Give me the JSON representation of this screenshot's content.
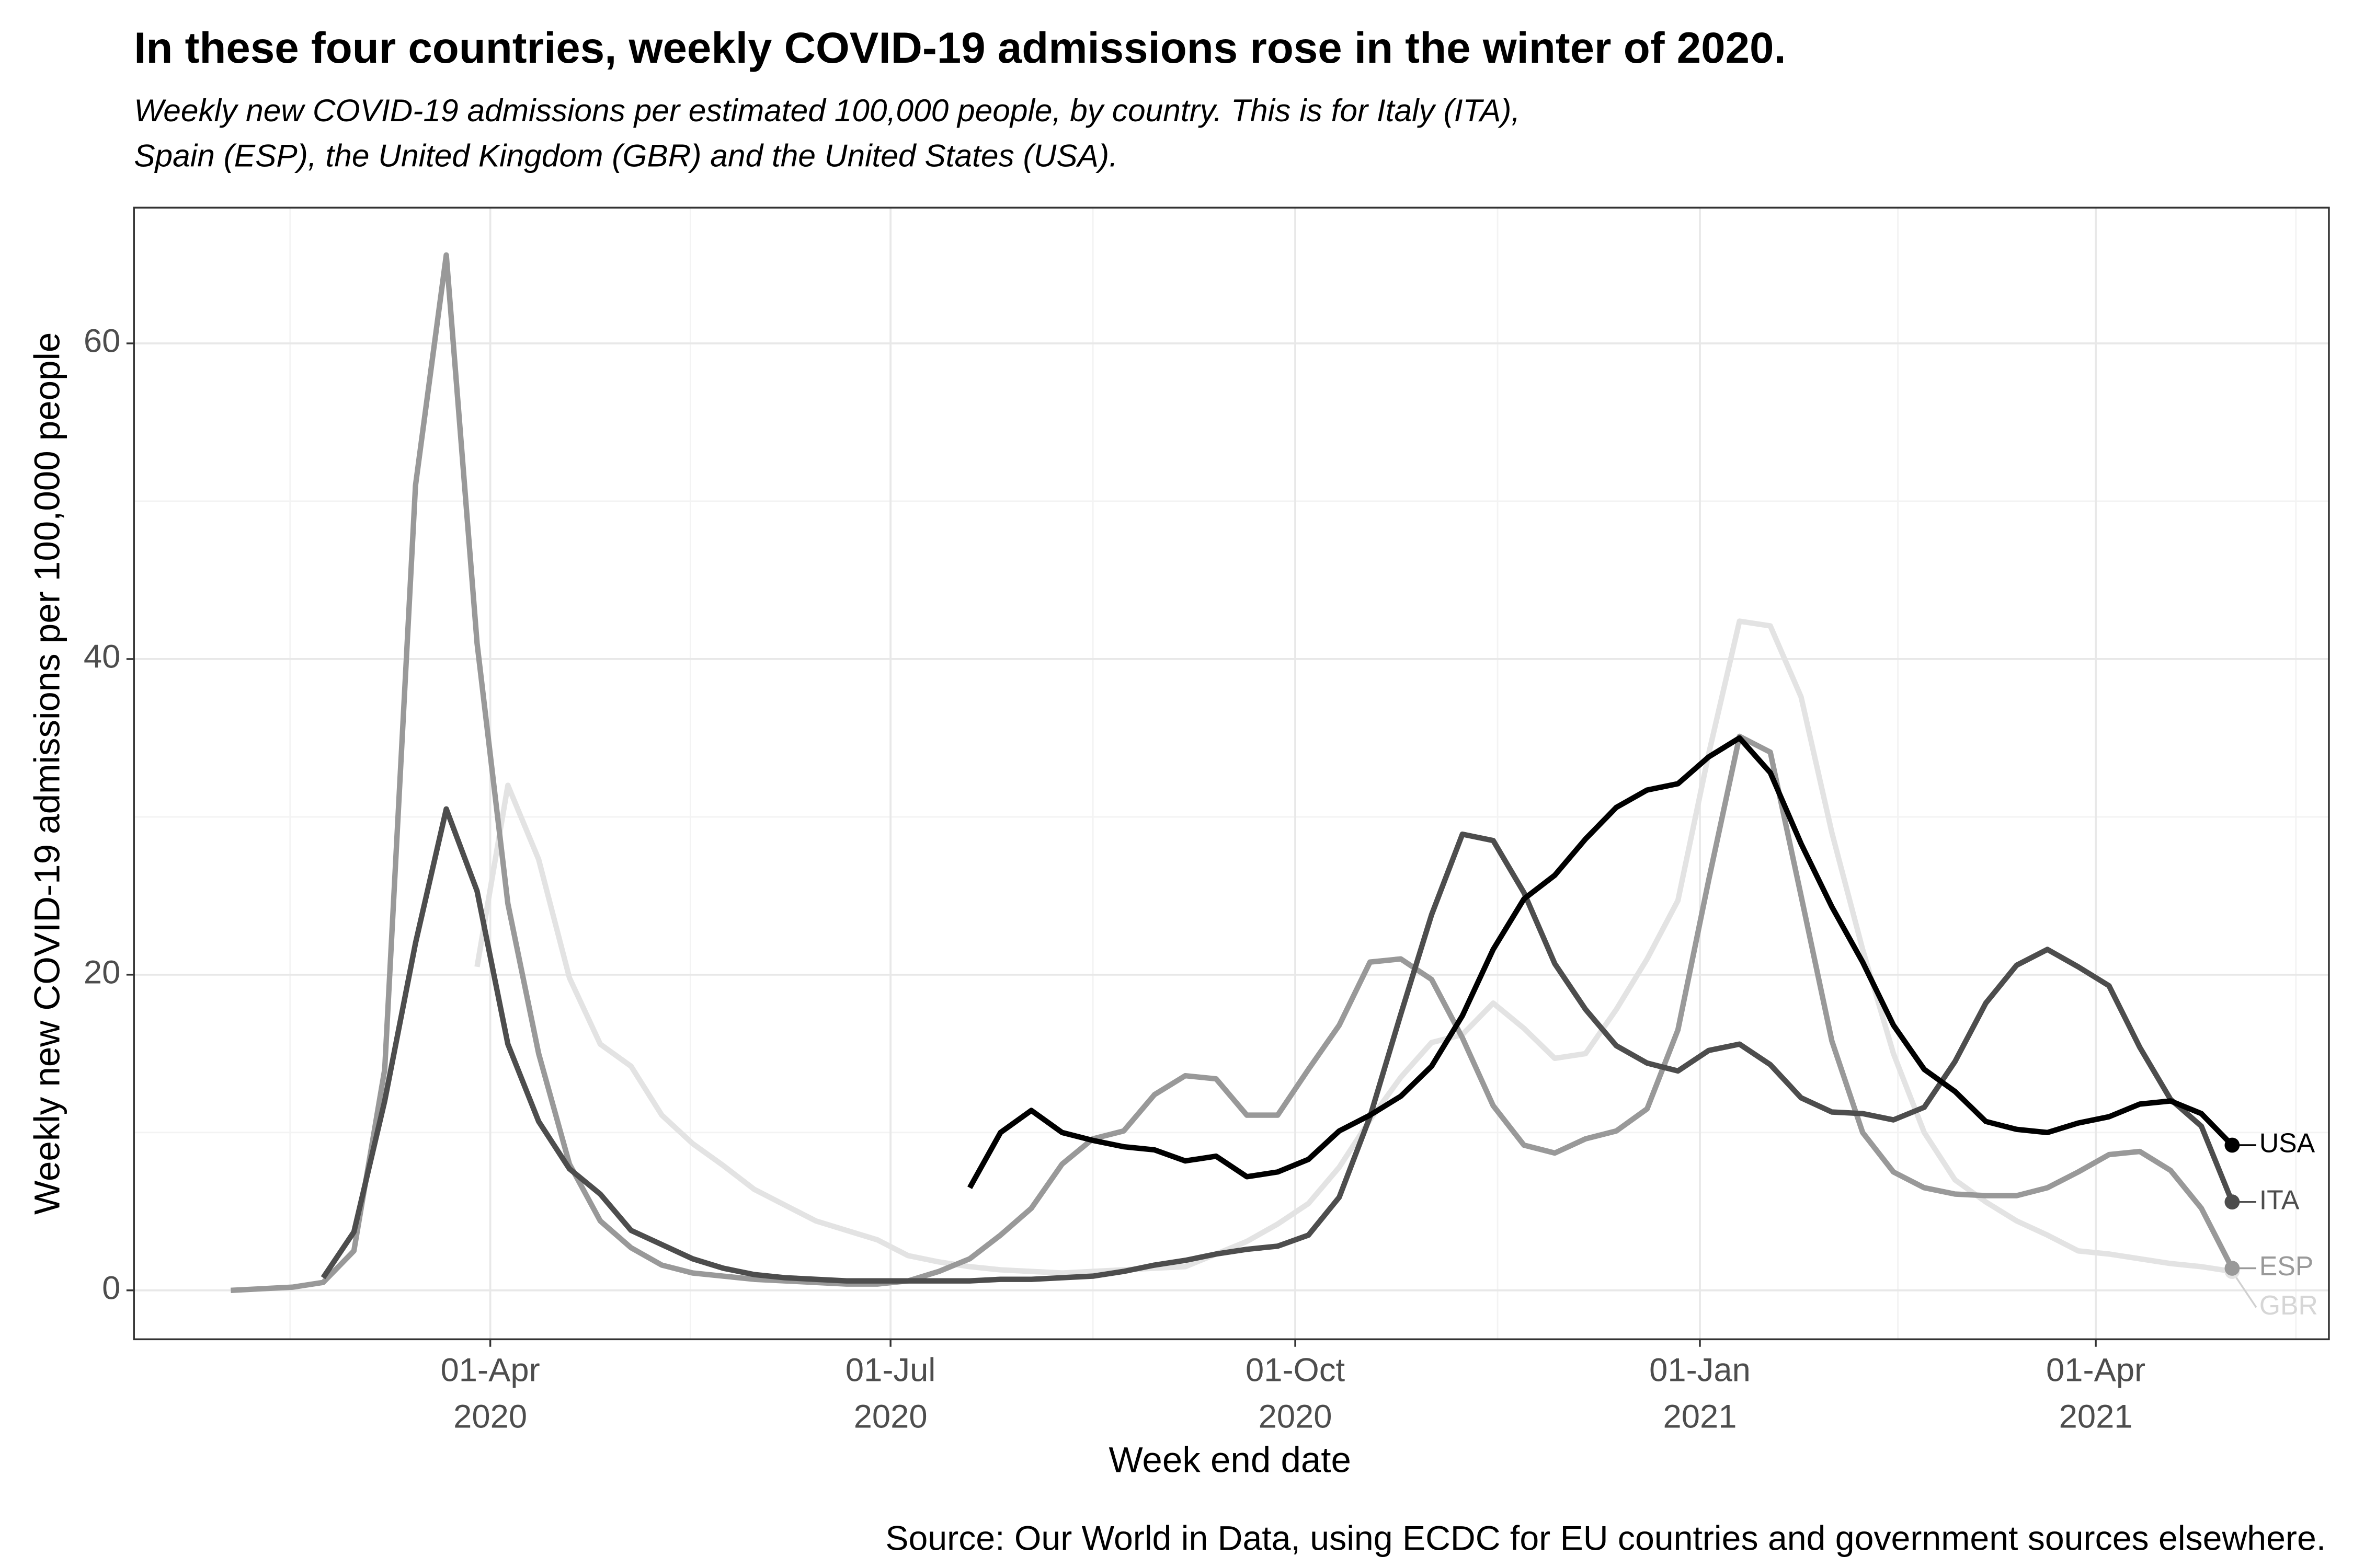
{
  "chart_data": {
    "type": "line",
    "title": "In these four countries, weekly COVID-19 admissions rose in the winter of 2020.",
    "subtitle": [
      "Weekly new COVID-19 admissions per estimated 100,000 people, by country. This is for Italy (ITA),",
      "Spain (ESP), the United Kingdom (GBR) and the United States (USA)."
    ],
    "xlabel": "Week end date",
    "ylabel": "Weekly new COVID-19 admissions per 100,000 people",
    "caption": "Source: Our World in Data, using ECDC for EU countries and government sources elsewhere.",
    "x": [
      "2020-02-02",
      "2020-02-09",
      "2020-02-16",
      "2020-02-23",
      "2020-03-01",
      "2020-03-08",
      "2020-03-15",
      "2020-03-22",
      "2020-03-29",
      "2020-04-05",
      "2020-04-12",
      "2020-04-19",
      "2020-04-26",
      "2020-05-03",
      "2020-05-10",
      "2020-05-17",
      "2020-05-24",
      "2020-05-31",
      "2020-06-07",
      "2020-06-14",
      "2020-06-21",
      "2020-06-28",
      "2020-07-05",
      "2020-07-12",
      "2020-07-19",
      "2020-07-26",
      "2020-08-02",
      "2020-08-09",
      "2020-08-16",
      "2020-08-23",
      "2020-08-30",
      "2020-09-06",
      "2020-09-13",
      "2020-09-20",
      "2020-09-27",
      "2020-10-04",
      "2020-10-11",
      "2020-10-18",
      "2020-10-25",
      "2020-11-01",
      "2020-11-08",
      "2020-11-15",
      "2020-11-22",
      "2020-11-29",
      "2020-12-06",
      "2020-12-13",
      "2020-12-20",
      "2020-12-27",
      "2021-01-03",
      "2021-01-10",
      "2021-01-17",
      "2021-01-24",
      "2021-01-31",
      "2021-02-07",
      "2021-02-14",
      "2021-02-21",
      "2021-02-28",
      "2021-03-07",
      "2021-03-14",
      "2021-03-21",
      "2021-03-28",
      "2021-04-04",
      "2021-04-11",
      "2021-04-18",
      "2021-04-25",
      "2021-05-02"
    ],
    "series": [
      {
        "name": "GBR",
        "color": "#e3e3e3",
        "values": [
          null,
          null,
          null,
          null,
          null,
          null,
          null,
          null,
          20.5,
          32,
          27.3,
          19.8,
          15.6,
          14.2,
          11.1,
          9.3,
          7.9,
          6.4,
          5.4,
          4.4,
          3.8,
          3.2,
          2.2,
          1.8,
          1.5,
          1.3,
          1.2,
          1.1,
          1.2,
          1.3,
          1.4,
          1.5,
          2.3,
          3.1,
          4.2,
          5.5,
          7.8,
          10.8,
          13.5,
          15.7,
          16.2,
          18.2,
          16.6,
          14.7,
          15.0,
          17.8,
          21,
          24.7,
          34,
          42.4,
          42.1,
          37.6,
          29,
          21.6,
          15,
          10,
          7,
          5.6,
          4.4,
          3.5,
          2.5,
          2.3,
          2.0,
          1.7,
          1.5,
          1.2
        ]
      },
      {
        "name": "ESP",
        "color": "#999999",
        "values": [
          0,
          0.1,
          0.2,
          0.5,
          2.5,
          14,
          51,
          65.6,
          41,
          24.5,
          15,
          8,
          4.4,
          2.7,
          1.6,
          1.1,
          0.9,
          0.7,
          0.6,
          0.5,
          0.4,
          0.4,
          0.6,
          1.2,
          2.0,
          3.5,
          5.2,
          8,
          9.6,
          10.1,
          12.4,
          13.6,
          13.4,
          11.1,
          11.1,
          14,
          16.8,
          20.8,
          21,
          19.7,
          16,
          11.7,
          9.2,
          8.7,
          9.6,
          10.1,
          11.5,
          16.5,
          26,
          35.1,
          34.1,
          25,
          15.8,
          10,
          7.5,
          6.5,
          6.1,
          6.0,
          6.0,
          6.5,
          7.5,
          8.6,
          8.8,
          7.6,
          5.2,
          1.4
        ]
      },
      {
        "name": "ITA",
        "color": "#4d4d4d",
        "values": [
          null,
          null,
          null,
          0.8,
          3.7,
          12,
          22,
          30.5,
          25.3,
          15.6,
          10.7,
          7.7,
          6.1,
          3.8,
          2.9,
          2.0,
          1.4,
          1.0,
          0.8,
          0.7,
          0.6,
          0.6,
          0.6,
          0.6,
          0.6,
          0.7,
          0.7,
          0.8,
          0.9,
          1.2,
          1.6,
          1.9,
          2.3,
          2.6,
          2.8,
          3.5,
          5.9,
          11,
          17.5,
          23.8,
          28.9,
          28.5,
          25.2,
          20.7,
          17.8,
          15.5,
          14.4,
          13.9,
          15.2,
          15.6,
          14.3,
          12.2,
          11.3,
          11.2,
          10.8,
          11.6,
          14.5,
          18.2,
          20.6,
          21.6,
          20.5,
          19.3,
          15.4,
          12.1,
          10.4,
          5.6
        ]
      },
      {
        "name": "USA",
        "color": "#000000",
        "values": [
          null,
          null,
          null,
          null,
          null,
          null,
          null,
          null,
          null,
          null,
          null,
          null,
          null,
          null,
          null,
          null,
          null,
          null,
          null,
          null,
          null,
          null,
          null,
          null,
          6.5,
          10,
          11.4,
          10,
          9.5,
          9.1,
          8.9,
          8.2,
          8.5,
          7.2,
          7.5,
          8.3,
          10.1,
          11.1,
          12.3,
          14.2,
          17.4,
          21.6,
          24.8,
          26.3,
          28.6,
          30.6,
          31.7,
          32.1,
          33.8,
          35,
          32.8,
          28.3,
          24.3,
          20.8,
          16.8,
          14,
          12.6,
          10.7,
          10.2,
          10,
          10.6,
          11,
          11.8,
          12,
          11.2,
          9.2
        ]
      }
    ],
    "xlim": [
      "2020-01-11",
      "2021-05-24"
    ],
    "xticks": [
      {
        "value": "2020-04-01",
        "label": [
          "01-Apr",
          "2020"
        ]
      },
      {
        "value": "2020-07-01",
        "label": [
          "01-Jul",
          "2020"
        ]
      },
      {
        "value": "2020-10-01",
        "label": [
          "01-Oct",
          "2020"
        ]
      },
      {
        "value": "2021-01-01",
        "label": [
          "01-Jan",
          "2021"
        ]
      },
      {
        "value": "2021-04-01",
        "label": [
          "01-Apr",
          "2021"
        ]
      }
    ],
    "ylim": [
      -3.1,
      68.6
    ],
    "yticks": [
      0,
      20,
      40,
      60
    ],
    "grid": true,
    "end_labels": true
  }
}
